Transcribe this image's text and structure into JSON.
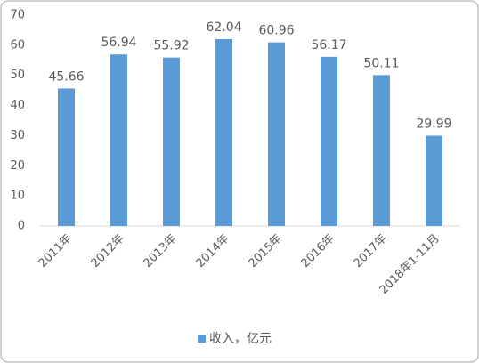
{
  "chart_data": {
    "type": "bar",
    "categories": [
      "2011年",
      "2012年",
      "2013年",
      "2014年",
      "2015年",
      "2016年",
      "2017年",
      "2018年1-11月"
    ],
    "series": [
      {
        "name": "收入，亿元",
        "color": "#5b9bd5",
        "values": [
          45.66,
          56.94,
          55.92,
          62.04,
          60.96,
          56.17,
          50.11,
          29.99
        ]
      }
    ],
    "ylim": [
      0,
      70
    ],
    "yticks": [
      0,
      10,
      20,
      30,
      40,
      50,
      60,
      70
    ],
    "grid": false,
    "legend": "bottom"
  }
}
